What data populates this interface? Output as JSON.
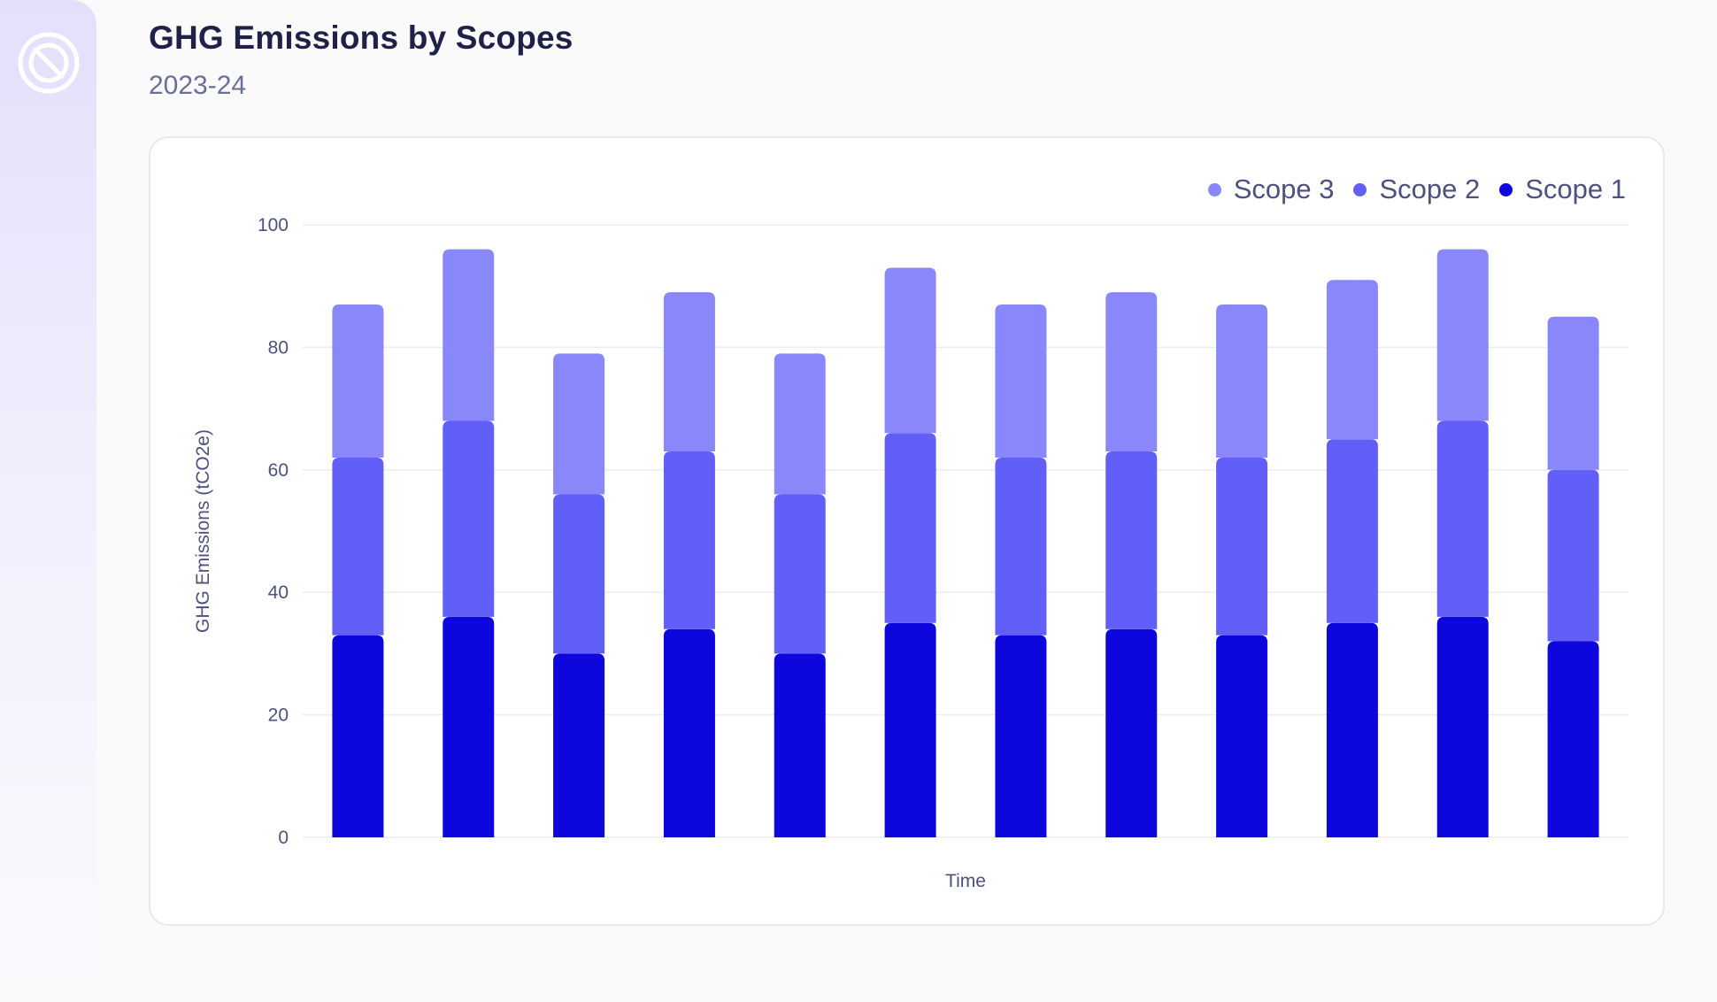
{
  "sidebar": {
    "logo_icon": "brand-logo-icon"
  },
  "header": {
    "title": "GHG Emissions by Scopes",
    "subtitle": "2023-24"
  },
  "colors": {
    "scope1": "#0d06dd",
    "scope2": "#625ff8",
    "scope3": "#8a87fb"
  },
  "chart_data": {
    "type": "bar",
    "stacked": true,
    "title": "",
    "xlabel": "Time",
    "ylabel": "GHG Emissions (tCO2e)",
    "ylim": [
      0,
      100
    ],
    "yticks": [
      0,
      20,
      40,
      60,
      80,
      100
    ],
    "categories": [
      "",
      "",
      "",
      "",
      "",
      "",
      "",
      "",
      "",
      "",
      "",
      ""
    ],
    "series": [
      {
        "name": "Scope 1",
        "values": [
          33,
          36,
          30,
          34,
          30,
          35,
          33,
          34,
          33,
          35,
          36,
          32
        ]
      },
      {
        "name": "Scope 2",
        "values": [
          29,
          32,
          26,
          29,
          26,
          31,
          29,
          29,
          29,
          30,
          32,
          28
        ]
      },
      {
        "name": "Scope 3",
        "values": [
          25,
          28,
          23,
          26,
          23,
          27,
          25,
          26,
          25,
          26,
          28,
          25
        ]
      }
    ],
    "legend_order": [
      "Scope 3",
      "Scope 2",
      "Scope 1"
    ],
    "legend_position": "top-right",
    "grid": true
  }
}
